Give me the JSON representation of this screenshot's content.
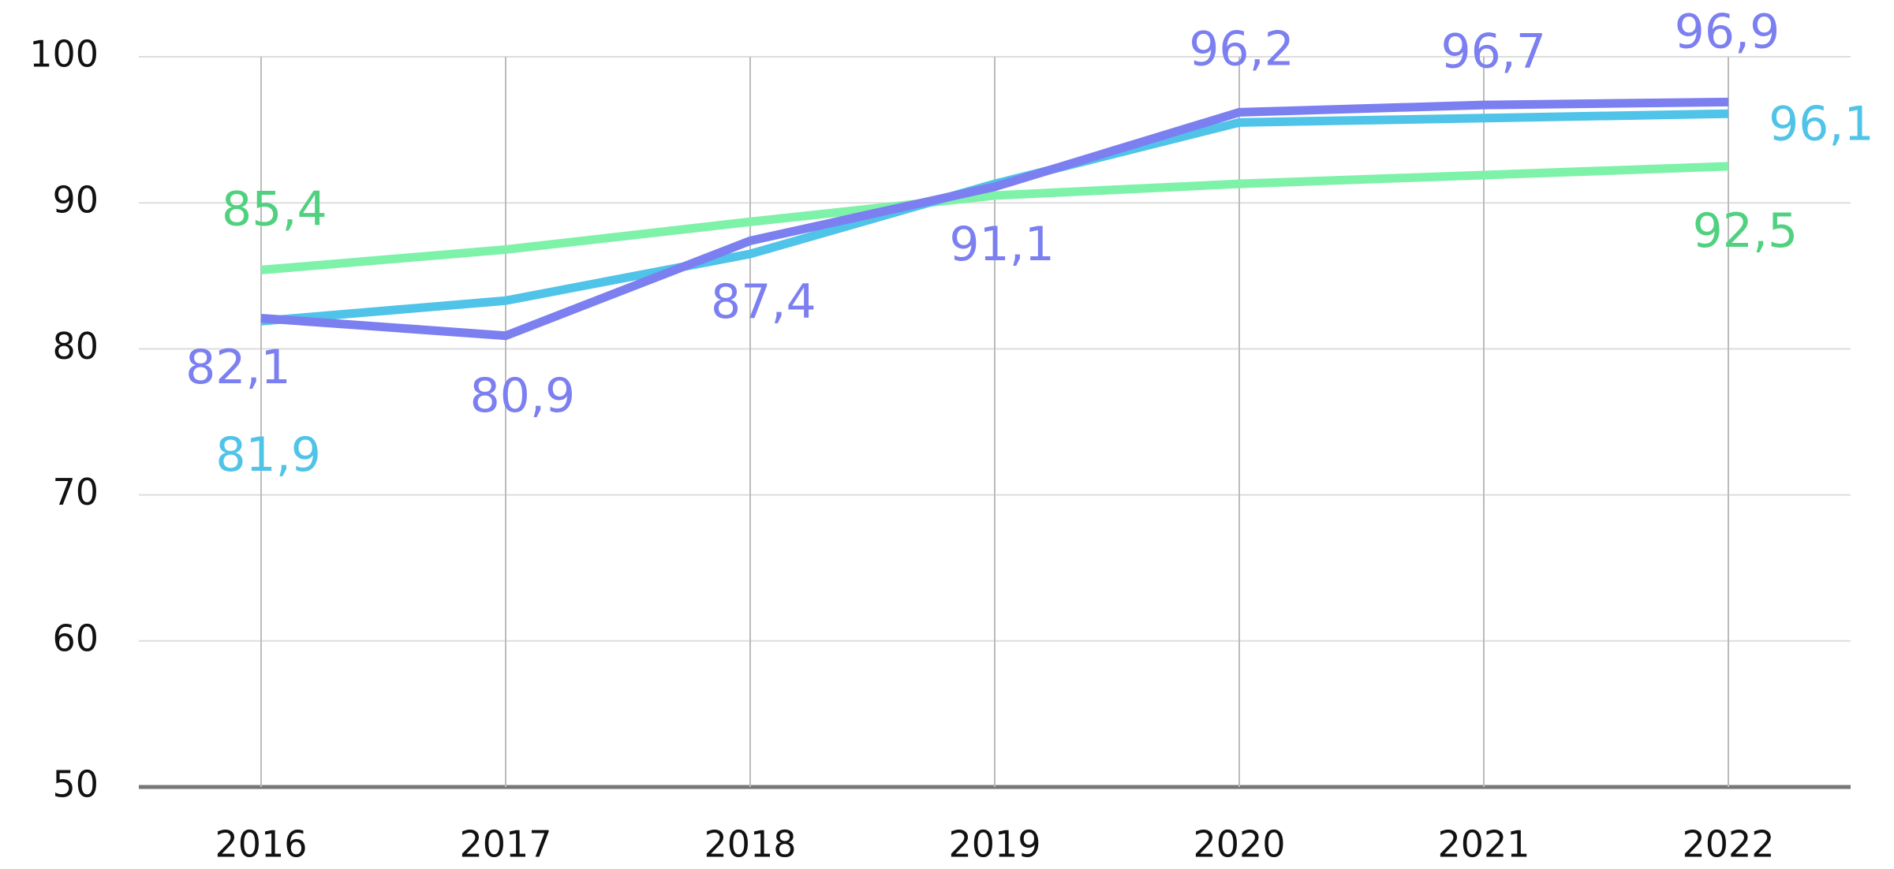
{
  "chart_data": {
    "type": "line",
    "categories": [
      "2016",
      "2017",
      "2018",
      "2019",
      "2020",
      "2021",
      "2022"
    ],
    "series": [
      {
        "color": "#7df2a8",
        "label_color": "#4fd17f",
        "values": [
          85.4,
          86.8,
          88.7,
          90.5,
          91.3,
          91.9,
          92.5
        ],
        "value_labels": [
          "85,4",
          null,
          null,
          null,
          null,
          null,
          "92,5"
        ]
      },
      {
        "color": "#4fc3e8",
        "label_color": "#4fc3e8",
        "values": [
          81.9,
          83.3,
          86.5,
          91.3,
          95.5,
          95.8,
          96.1
        ],
        "value_labels": [
          "81,9",
          null,
          null,
          null,
          null,
          null,
          "96,1"
        ]
      },
      {
        "color": "#7b7ff0",
        "label_color": "#7b7ff0",
        "values": [
          82.1,
          80.9,
          87.4,
          91.1,
          96.2,
          96.7,
          96.9
        ],
        "value_labels": [
          "82,1",
          "80,9",
          "87,4",
          "91,1",
          "96,2",
          "96,7",
          "96,9"
        ]
      }
    ],
    "ylim": [
      50,
      100
    ],
    "yticks": [
      50,
      60,
      70,
      80,
      90,
      100
    ],
    "grid": true
  }
}
